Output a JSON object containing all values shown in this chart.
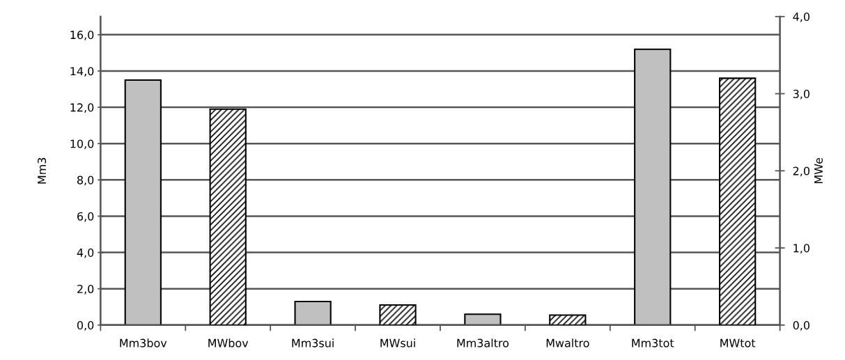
{
  "chart_data": {
    "type": "bar",
    "ylabel": "Mm3",
    "y2label": "MWe",
    "categories": [
      "Mm3bov",
      "MWbov",
      "Mm3sui",
      "MWsui",
      "Mm3altro",
      "Mwaltro",
      "Mm3tot",
      "MWtot"
    ],
    "series": [
      {
        "color": "#c0c0c0",
        "values": [
          13.5,
          null,
          1.3,
          null,
          0.6,
          null,
          15.2,
          null
        ]
      },
      {
        "color": "#000000",
        "axis": "y2",
        "values": [
          null,
          2.8,
          null,
          0.26,
          null,
          0.13,
          null,
          3.2
        ]
      }
    ],
    "ylim": [
      0,
      17
    ],
    "yticks": [
      {
        "value": 0,
        "label": "0,0"
      },
      {
        "value": 2,
        "label": "2,0"
      },
      {
        "value": 4,
        "label": "4,0"
      },
      {
        "value": 6,
        "label": "6,0"
      },
      {
        "value": 8,
        "label": "8,0"
      },
      {
        "value": 10,
        "label": "10,0"
      },
      {
        "value": 12,
        "label": "12,0"
      },
      {
        "value": 14,
        "label": "14,0"
      },
      {
        "value": 16,
        "label": "16,0"
      }
    ],
    "y2lim": [
      0,
      4
    ],
    "y2ticks": [
      {
        "value": 0,
        "label": "0,0"
      },
      {
        "value": 1,
        "label": "1,0"
      },
      {
        "value": 2,
        "label": "2,0"
      },
      {
        "value": 3,
        "label": "3,0"
      },
      {
        "value": 4,
        "label": "4,0"
      }
    ],
    "grid": "y"
  }
}
